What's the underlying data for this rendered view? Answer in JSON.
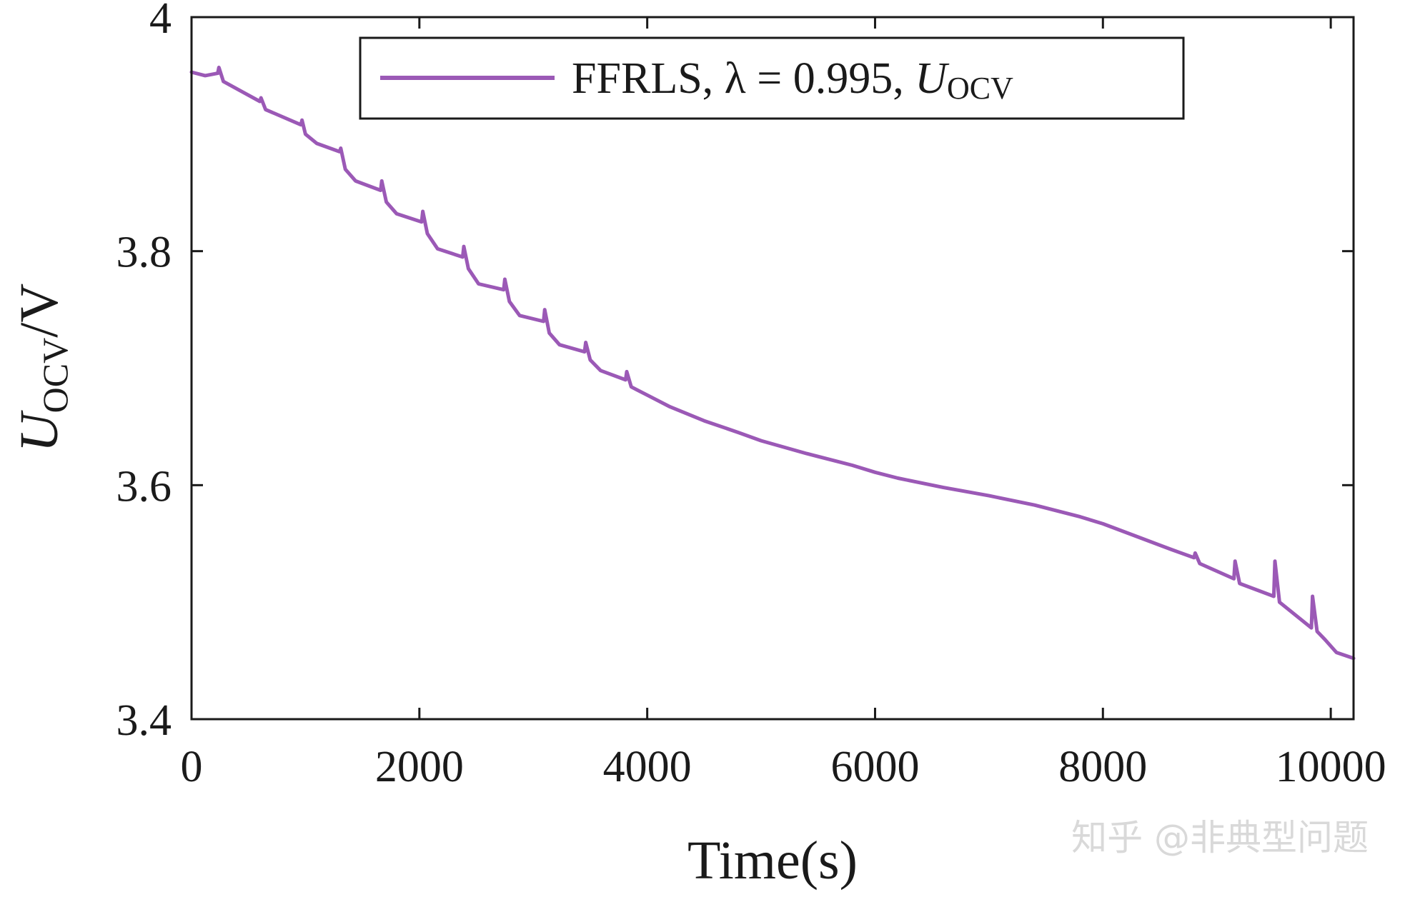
{
  "chart_data": {
    "type": "line",
    "title": "",
    "xlabel": "Time(s)",
    "ylabel": "U_OCV/V",
    "ylabel_parts": {
      "main": "U",
      "sub": "OCV",
      "suffix": "/V"
    },
    "xlim": [
      0,
      10200
    ],
    "ylim": [
      3.4,
      4.0
    ],
    "xticks": [
      0,
      2000,
      4000,
      6000,
      8000,
      10000
    ],
    "yticks": [
      3.4,
      3.6,
      3.8,
      4.0
    ],
    "xtick_labels": [
      "0",
      "2000",
      "4000",
      "6000",
      "8000",
      "10000"
    ],
    "ytick_labels": [
      "3.4",
      "3.6",
      "3.8",
      "4"
    ],
    "grid": false,
    "legend_position": "top",
    "legend": {
      "entry_label": "FFRLS, λ = 0.995, ",
      "entry_var": "U",
      "entry_sub": "OCV"
    },
    "series": [
      {
        "name": "FFRLS, λ = 0.995, U_OCV",
        "color": "#9b59b6",
        "x": [
          0,
          120,
          230,
          240,
          280,
          600,
          610,
          650,
          960,
          970,
          1000,
          1100,
          1300,
          1310,
          1350,
          1440,
          1660,
          1670,
          1710,
          1800,
          2020,
          2030,
          2070,
          2160,
          2380,
          2390,
          2430,
          2520,
          2740,
          2750,
          2790,
          2880,
          3090,
          3100,
          3140,
          3230,
          3450,
          3460,
          3500,
          3590,
          3810,
          3820,
          3860,
          4000,
          4200,
          4500,
          4800,
          5000,
          5400,
          5800,
          6000,
          6200,
          6600,
          7000,
          7400,
          7800,
          8000,
          8300,
          8600,
          8800,
          8810,
          8850,
          9150,
          9160,
          9200,
          9500,
          9510,
          9550,
          9830,
          9840,
          9880,
          9950,
          10050,
          10200
        ],
        "values": [
          3.953,
          3.95,
          3.952,
          3.957,
          3.945,
          3.928,
          3.931,
          3.921,
          3.908,
          3.912,
          3.9,
          3.892,
          3.885,
          3.888,
          3.87,
          3.86,
          3.852,
          3.86,
          3.842,
          3.832,
          3.825,
          3.834,
          3.815,
          3.802,
          3.795,
          3.804,
          3.785,
          3.772,
          3.767,
          3.776,
          3.757,
          3.745,
          3.74,
          3.75,
          3.73,
          3.72,
          3.714,
          3.722,
          3.707,
          3.698,
          3.69,
          3.697,
          3.684,
          3.677,
          3.667,
          3.655,
          3.645,
          3.638,
          3.627,
          3.617,
          3.611,
          3.606,
          3.598,
          3.591,
          3.583,
          3.573,
          3.567,
          3.556,
          3.545,
          3.538,
          3.542,
          3.533,
          3.52,
          3.535,
          3.516,
          3.505,
          3.535,
          3.5,
          3.478,
          3.505,
          3.475,
          3.468,
          3.457,
          3.452
        ]
      }
    ]
  },
  "watermark": "知乎 @非典型问题"
}
